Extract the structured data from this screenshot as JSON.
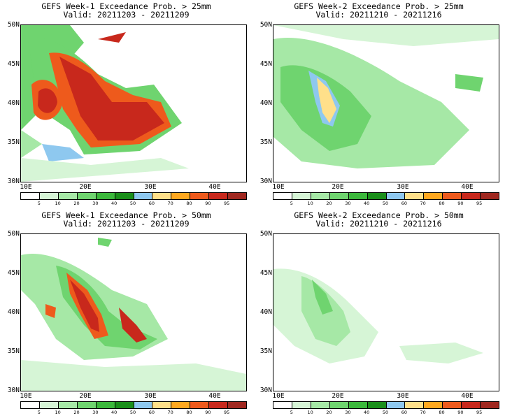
{
  "panels": [
    {
      "title": "GEFS Week-1 Exceedance Prob. > 25mm",
      "valid": "Valid: 20211203 - 20211209"
    },
    {
      "title": "GEFS Week-2 Exceedance Prob. > 25mm",
      "valid": "Valid: 20211210 - 20211216"
    },
    {
      "title": "GEFS Week-1 Exceedance Prob. > 50mm",
      "valid": "Valid: 20211203 - 20211209"
    },
    {
      "title": "GEFS Week-2 Exceedance Prob. > 50mm",
      "valid": "Valid: 20211210 - 20211216"
    }
  ],
  "latitude_labels": [
    "50N",
    "45N",
    "40N",
    "35N",
    "30N"
  ],
  "longitude_labels": [
    "10E",
    "20E",
    "30E",
    "40E"
  ],
  "colorbar": {
    "ticks": [
      "5",
      "10",
      "20",
      "30",
      "40",
      "50",
      "60",
      "70",
      "80",
      "90",
      "95"
    ],
    "colors": [
      "#ffffff",
      "#d6f5d6",
      "#a6e8a6",
      "#6fd46f",
      "#3cb83c",
      "#1a8f1a",
      "#8ec8ef",
      "#ffe08a",
      "#ffa81f",
      "#ee5a1c",
      "#c8281c",
      "#a02820"
    ]
  }
}
